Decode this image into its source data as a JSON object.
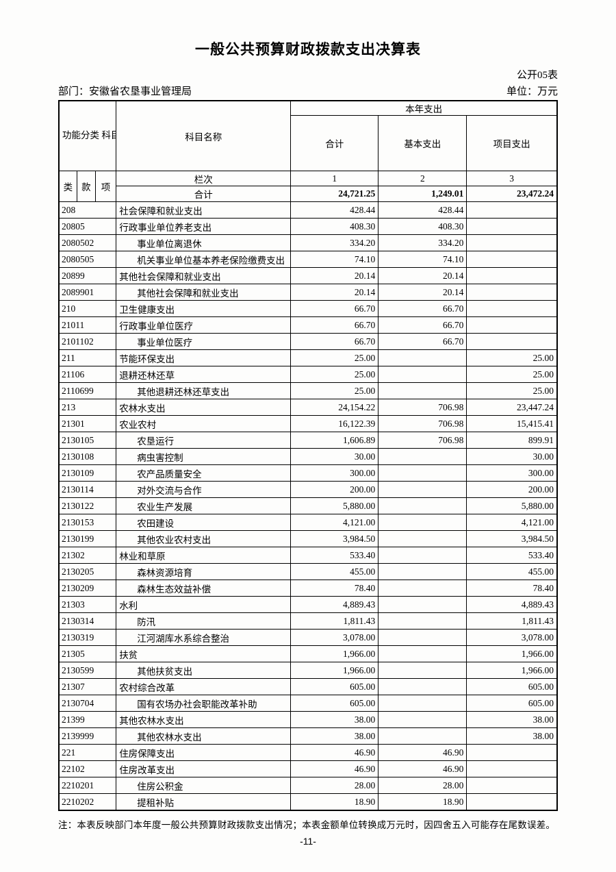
{
  "page": {
    "title": "一般公共预算财政拨款支出决算表",
    "table_no": "公开05表",
    "department": "部门：安徽省农垦事业管理局",
    "unit": "单位：万元",
    "note": "注：本表反映部门本年度一般公共预算财政拨款支出情况；本表金额单位转换成万元时，因四舍五入可能存在尾数误差。",
    "page_number": "-11-"
  },
  "table": {
    "header": {
      "code_group": "功能分类\n科目编码",
      "subject": "科目名称",
      "year_group": "本年支出",
      "col_total": "合计",
      "col_basic": "基本支出",
      "col_project": "项目支出",
      "code_category": "类",
      "code_section": "款",
      "code_item": "项",
      "index_label": "栏次",
      "index_1": "1",
      "index_2": "2",
      "index_3": "3",
      "total_label": "合计"
    },
    "total_row": {
      "total": "24,721.25",
      "basic": "1,249.01",
      "project": "23,472.24"
    },
    "rows": [
      {
        "code": "208",
        "name": "社会保障和就业支出",
        "indent": false,
        "total": "428.44",
        "basic": "428.44",
        "project": ""
      },
      {
        "code": "20805",
        "name": "行政事业单位养老支出",
        "indent": false,
        "total": "408.30",
        "basic": "408.30",
        "project": ""
      },
      {
        "code": "2080502",
        "name": "事业单位离退休",
        "indent": true,
        "total": "334.20",
        "basic": "334.20",
        "project": ""
      },
      {
        "code": "2080505",
        "name": "机关事业单位基本养老保险缴费支出",
        "indent": true,
        "total": "74.10",
        "basic": "74.10",
        "project": ""
      },
      {
        "code": "20899",
        "name": "其他社会保障和就业支出",
        "indent": false,
        "total": "20.14",
        "basic": "20.14",
        "project": ""
      },
      {
        "code": "2089901",
        "name": "其他社会保障和就业支出",
        "indent": true,
        "total": "20.14",
        "basic": "20.14",
        "project": ""
      },
      {
        "code": "210",
        "name": "卫生健康支出",
        "indent": false,
        "total": "66.70",
        "basic": "66.70",
        "project": ""
      },
      {
        "code": "21011",
        "name": "行政事业单位医疗",
        "indent": false,
        "total": "66.70",
        "basic": "66.70",
        "project": ""
      },
      {
        "code": "2101102",
        "name": "事业单位医疗",
        "indent": true,
        "total": "66.70",
        "basic": "66.70",
        "project": ""
      },
      {
        "code": "211",
        "name": "节能环保支出",
        "indent": false,
        "total": "25.00",
        "basic": "",
        "project": "25.00"
      },
      {
        "code": "21106",
        "name": "退耕还林还草",
        "indent": false,
        "total": "25.00",
        "basic": "",
        "project": "25.00"
      },
      {
        "code": "2110699",
        "name": "其他退耕还林还草支出",
        "indent": true,
        "total": "25.00",
        "basic": "",
        "project": "25.00"
      },
      {
        "code": "213",
        "name": "农林水支出",
        "indent": false,
        "total": "24,154.22",
        "basic": "706.98",
        "project": "23,447.24"
      },
      {
        "code": "21301",
        "name": "农业农村",
        "indent": false,
        "total": "16,122.39",
        "basic": "706.98",
        "project": "15,415.41"
      },
      {
        "code": "2130105",
        "name": "农垦运行",
        "indent": true,
        "total": "1,606.89",
        "basic": "706.98",
        "project": "899.91"
      },
      {
        "code": "2130108",
        "name": "病虫害控制",
        "indent": true,
        "total": "30.00",
        "basic": "",
        "project": "30.00"
      },
      {
        "code": "2130109",
        "name": "农产品质量安全",
        "indent": true,
        "total": "300.00",
        "basic": "",
        "project": "300.00"
      },
      {
        "code": "2130114",
        "name": "对外交流与合作",
        "indent": true,
        "total": "200.00",
        "basic": "",
        "project": "200.00"
      },
      {
        "code": "2130122",
        "name": "农业生产发展",
        "indent": true,
        "total": "5,880.00",
        "basic": "",
        "project": "5,880.00"
      },
      {
        "code": "2130153",
        "name": "农田建设",
        "indent": true,
        "total": "4,121.00",
        "basic": "",
        "project": "4,121.00"
      },
      {
        "code": "2130199",
        "name": "其他农业农村支出",
        "indent": true,
        "total": "3,984.50",
        "basic": "",
        "project": "3,984.50"
      },
      {
        "code": "21302",
        "name": "林业和草原",
        "indent": false,
        "total": "533.40",
        "basic": "",
        "project": "533.40"
      },
      {
        "code": "2130205",
        "name": "森林资源培育",
        "indent": true,
        "total": "455.00",
        "basic": "",
        "project": "455.00"
      },
      {
        "code": "2130209",
        "name": "森林生态效益补偿",
        "indent": true,
        "total": "78.40",
        "basic": "",
        "project": "78.40"
      },
      {
        "code": "21303",
        "name": "水利",
        "indent": false,
        "total": "4,889.43",
        "basic": "",
        "project": "4,889.43"
      },
      {
        "code": "2130314",
        "name": "防汛",
        "indent": true,
        "total": "1,811.43",
        "basic": "",
        "project": "1,811.43"
      },
      {
        "code": "2130319",
        "name": "江河湖库水系综合整治",
        "indent": true,
        "total": "3,078.00",
        "basic": "",
        "project": "3,078.00"
      },
      {
        "code": "21305",
        "name": "扶贫",
        "indent": false,
        "total": "1,966.00",
        "basic": "",
        "project": "1,966.00"
      },
      {
        "code": "2130599",
        "name": "其他扶贫支出",
        "indent": true,
        "total": "1,966.00",
        "basic": "",
        "project": "1,966.00"
      },
      {
        "code": "21307",
        "name": "农村综合改革",
        "indent": false,
        "total": "605.00",
        "basic": "",
        "project": "605.00"
      },
      {
        "code": "2130704",
        "name": "国有农场办社会职能改革补助",
        "indent": true,
        "total": "605.00",
        "basic": "",
        "project": "605.00"
      },
      {
        "code": "21399",
        "name": "其他农林水支出",
        "indent": false,
        "total": "38.00",
        "basic": "",
        "project": "38.00"
      },
      {
        "code": "2139999",
        "name": "其他农林水支出",
        "indent": true,
        "total": "38.00",
        "basic": "",
        "project": "38.00"
      },
      {
        "code": "221",
        "name": "住房保障支出",
        "indent": false,
        "total": "46.90",
        "basic": "46.90",
        "project": ""
      },
      {
        "code": "22102",
        "name": "住房改革支出",
        "indent": false,
        "total": "46.90",
        "basic": "46.90",
        "project": ""
      },
      {
        "code": "2210201",
        "name": "住房公积金",
        "indent": true,
        "total": "28.00",
        "basic": "28.00",
        "project": ""
      },
      {
        "code": "2210202",
        "name": "提租补贴",
        "indent": true,
        "total": "18.90",
        "basic": "18.90",
        "project": ""
      }
    ]
  }
}
